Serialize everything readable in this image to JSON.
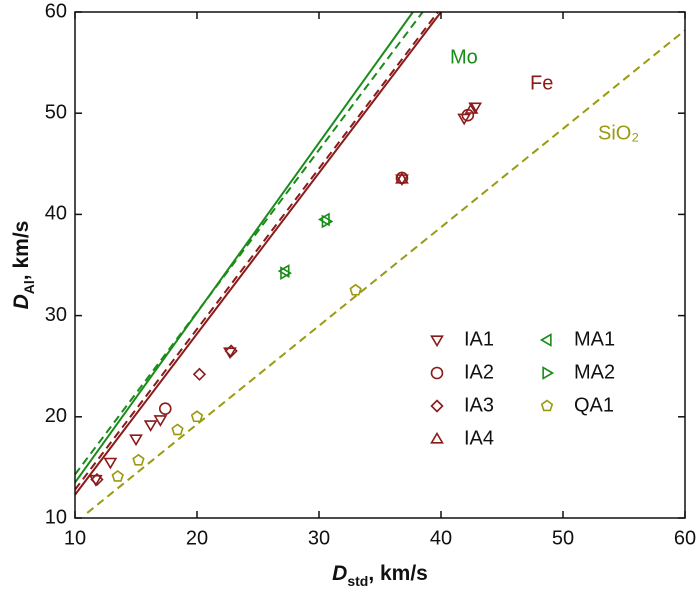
{
  "chart_data": {
    "type": "scatter",
    "xlabel": {
      "symbol": "D",
      "subscript": "std",
      "unit": ", km/s"
    },
    "ylabel": {
      "symbol": "D",
      "subscript": "Al",
      "unit": ", km/s"
    },
    "xlim": [
      10,
      60
    ],
    "xticks": [
      10,
      20,
      30,
      40,
      50,
      60
    ],
    "ylim": [
      10,
      60
    ],
    "yticks": [
      10,
      20,
      30,
      40,
      50,
      60
    ],
    "series": [
      {
        "name": "IA1",
        "color": "#8b1a1a",
        "marker": "triangle-down",
        "x": [
          11.7,
          12.9,
          15.0,
          16.2,
          17.0,
          22.7,
          36.8,
          41.9,
          42.8
        ],
        "values": [
          13.8,
          15.5,
          17.8,
          19.2,
          19.7,
          26.4,
          43.5,
          49.5,
          50.6
        ]
      },
      {
        "name": "IA2",
        "color": "#8b1a1a",
        "marker": "circle",
        "x": [
          17.4,
          36.8,
          42.2
        ],
        "values": [
          20.8,
          43.6,
          49.8
        ]
      },
      {
        "name": "IA3",
        "color": "#8b1a1a",
        "marker": "diamond",
        "x": [
          11.8,
          20.2,
          22.8
        ],
        "values": [
          13.8,
          24.2,
          26.5
        ]
      },
      {
        "name": "IA4",
        "color": "#8b1a1a",
        "marker": "triangle-up",
        "x": [
          36.8,
          42.5
        ],
        "values": [
          43.5,
          50.4
        ]
      },
      {
        "name": "MA1",
        "color": "#1a8c1a",
        "marker": "triangle-left",
        "x": [
          27.2,
          30.5
        ],
        "values": [
          34.4,
          39.5
        ]
      },
      {
        "name": "MA2",
        "color": "#1a8c1a",
        "marker": "triangle-right",
        "x": [
          27.2,
          30.6
        ],
        "values": [
          34.2,
          39.3
        ]
      },
      {
        "name": "QA1",
        "color": "#9a9a10",
        "marker": "pentagon",
        "x": [
          13.5,
          15.2,
          18.4,
          20.0,
          33.0
        ],
        "values": [
          14.1,
          15.7,
          18.7,
          20.0,
          32.5
        ]
      }
    ],
    "lines": [
      {
        "color": "#1a8c1a",
        "style": "solid",
        "x": [
          10,
          37.7
        ],
        "values": [
          13.5,
          60
        ]
      },
      {
        "color": "#1a8c1a",
        "style": "dashed",
        "x": [
          10,
          38.5
        ],
        "values": [
          14.3,
          60
        ]
      },
      {
        "color": "#8b1a1a",
        "style": "solid",
        "x": [
          10,
          40.0
        ],
        "values": [
          12.3,
          60
        ]
      },
      {
        "color": "#8b1a1a",
        "style": "dashed",
        "x": [
          10,
          39.75
        ],
        "values": [
          12.8,
          60
        ]
      },
      {
        "color": "#9a9a10",
        "style": "dashed",
        "x": [
          11,
          60
        ],
        "values": [
          10.5,
          58.2
        ]
      }
    ],
    "annotations": [
      {
        "text": "Mo",
        "color": "#1a8c1a"
      },
      {
        "text": "Fe",
        "color": "#8b1a1a"
      },
      {
        "text": "SiO₂",
        "color": "#9a9a10"
      }
    ]
  }
}
